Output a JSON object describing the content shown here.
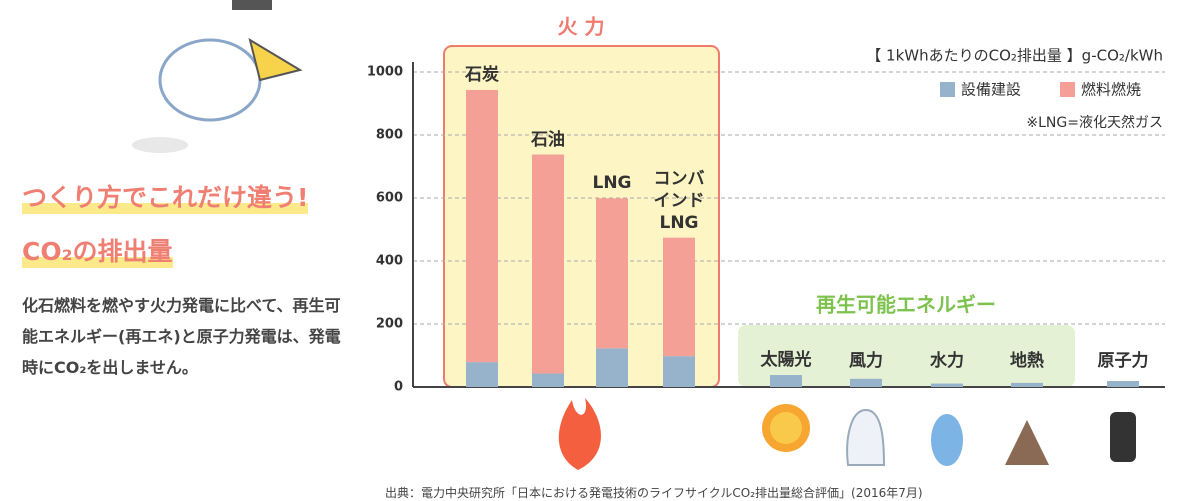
{
  "article": {
    "heading": "つくり方でこれだけ違う!",
    "subheading": "CO₂の排出量",
    "body": "化石燃料を燃やす火力発電に比べて、再生可能エネルギー(再エネ)と原子力発電は、発電時にCO₂を出しません。"
  },
  "chart_data": {
    "type": "stacked_bar",
    "title": "【 1kWhあたりのCO₂排出量 】g-CO₂/kWh",
    "note": "※LNG=液化天然ガス",
    "source": "出典：電力中央研究所「日本における発電技術のライフサイクルCO₂排出量総合評価」(2016年7月)",
    "groups": [
      "火 力",
      "再生可能エネルギー"
    ],
    "categories": [
      "石炭",
      "石油",
      "LNG",
      "コンバインドLNG",
      "太陽光",
      "風力",
      "水力",
      "地熱",
      "原子力"
    ],
    "series": [
      {
        "name": "設備建設",
        "color": "#97b3cc",
        "values": [
          79,
          43,
          123,
          98,
          38,
          26,
          11,
          13,
          19
        ]
      },
      {
        "name": "燃料燃焼",
        "color": "#f4a097",
        "values": [
          864,
          695,
          476,
          376,
          0,
          0,
          0,
          0,
          0
        ]
      }
    ],
    "ylim": [
      0,
      1000
    ],
    "yticks": [
      0,
      200,
      400,
      600,
      800,
      1000
    ],
    "grid": true
  }
}
